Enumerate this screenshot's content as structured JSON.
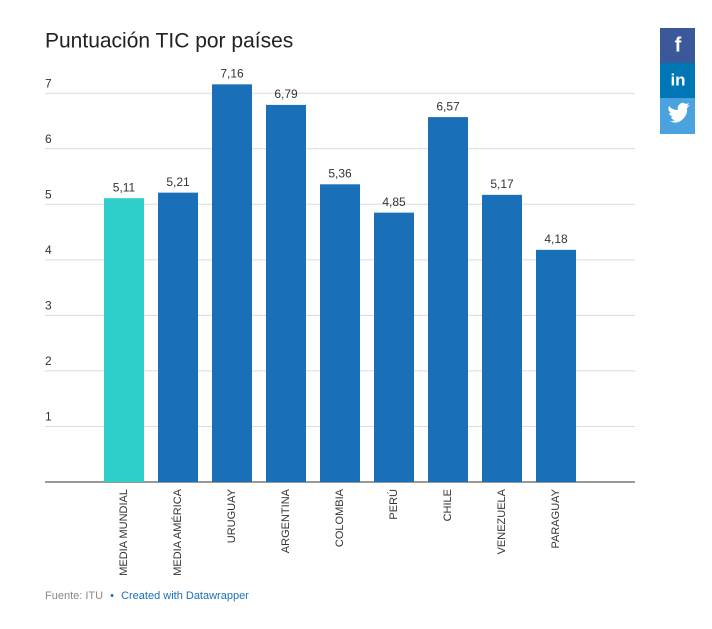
{
  "chart_data": {
    "type": "bar",
    "title": "Puntuación TIC por países",
    "categories": [
      "MEDIA MUNDIAL",
      "MEDIA AMÉRICA",
      "URUGUAY",
      "ARGENTINA",
      "COLOMBIA",
      "PERÚ",
      "CHILE",
      "VENEZUELA",
      "PARAGUAY"
    ],
    "values": [
      5.11,
      5.21,
      7.16,
      6.79,
      5.36,
      4.85,
      6.57,
      5.17,
      4.18
    ],
    "value_labels": [
      "5,11",
      "5,21",
      "7,16",
      "6,79",
      "5,36",
      "4,85",
      "6,57",
      "5,17",
      "4,18"
    ],
    "colors": [
      "#2ecfcb",
      "#1a70b8",
      "#1a70b8",
      "#1a70b8",
      "#1a70b8",
      "#1a70b8",
      "#1a70b8",
      "#1a70b8",
      "#1a70b8"
    ],
    "ylim": [
      0,
      7.4
    ],
    "yticks": [
      1,
      2,
      3,
      4,
      5,
      6,
      7
    ],
    "grid": true,
    "source": "Fuente: ITU",
    "separator": "•",
    "credit": "Created with Datawrapper"
  },
  "social": [
    "f",
    "in"
  ]
}
